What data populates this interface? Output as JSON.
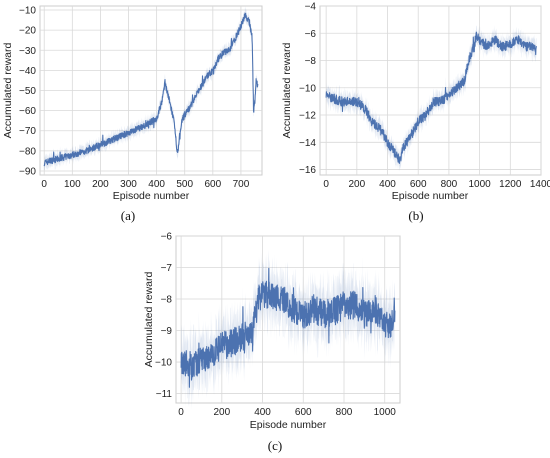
{
  "chart_data": [
    {
      "id": "a",
      "type": "line",
      "caption": "(a)",
      "xlabel": "Episode number",
      "ylabel": "Accumulated reward",
      "xlim": [
        -15,
        775
      ],
      "ylim": [
        -92,
        -8
      ],
      "xticks": [
        0,
        100,
        200,
        300,
        400,
        500,
        600,
        700
      ],
      "yticks": [
        -90,
        -80,
        -70,
        -60,
        -50,
        -40,
        -30,
        -20,
        -10
      ],
      "ytick_labels": [
        "−90",
        "−80",
        "−70",
        "−60",
        "−50",
        "−40",
        "−30",
        "−20",
        "−10"
      ],
      "color": "#4c72b0",
      "noise": 1.6,
      "series": [
        {
          "x": [
            0,
            20,
            50,
            100,
            150,
            200,
            250,
            300,
            350,
            400,
            420,
            430,
            445,
            460,
            475,
            480,
            490,
            500,
            520,
            550,
            580,
            600,
            620,
            640,
            660,
            680,
            700,
            710,
            715,
            720,
            730,
            740,
            745,
            750,
            755,
            760
          ],
          "y": [
            -86,
            -85,
            -84,
            -82,
            -80,
            -77,
            -74,
            -71,
            -68,
            -64,
            -55,
            -46,
            -55,
            -64,
            -82,
            -76,
            -65,
            -62,
            -58,
            -50,
            -43,
            -40,
            -34,
            -31,
            -30,
            -24,
            -18,
            -14,
            -12,
            -14,
            -16,
            -24,
            -60,
            -55,
            -45,
            -48
          ]
        }
      ]
    },
    {
      "id": "b",
      "type": "line",
      "caption": "(b)",
      "xlabel": "Episode number",
      "ylabel": "Accumulated reward",
      "xlim": [
        -40,
        1400
      ],
      "ylim": [
        -16.4,
        -4.0
      ],
      "xticks": [
        0,
        200,
        400,
        600,
        800,
        1000,
        1200,
        1400
      ],
      "yticks": [
        -16,
        -14,
        -12,
        -10,
        -8,
        -6,
        -4
      ],
      "ytick_labels": [
        "−16",
        "−14",
        "−12",
        "−10",
        "−8",
        "−6",
        "−4"
      ],
      "color": "#4c72b0",
      "noise": 0.35,
      "series": [
        {
          "x": [
            0,
            50,
            100,
            150,
            200,
            250,
            300,
            350,
            400,
            430,
            460,
            480,
            500,
            550,
            600,
            650,
            700,
            750,
            800,
            850,
            900,
            930,
            960,
            980,
            1000,
            1050,
            1100,
            1150,
            1200,
            1250,
            1300,
            1350,
            1370
          ],
          "y": [
            -10.5,
            -10.8,
            -11.0,
            -11.0,
            -11.0,
            -11.5,
            -12.5,
            -13.0,
            -14.0,
            -14.5,
            -15.0,
            -15.3,
            -14.5,
            -13.5,
            -12.5,
            -12.0,
            -11.0,
            -11.0,
            -10.5,
            -10.0,
            -9.5,
            -8.0,
            -7.0,
            -6.2,
            -6.5,
            -7.0,
            -6.5,
            -7.0,
            -6.8,
            -6.5,
            -7.0,
            -7.0,
            -7.0
          ]
        }
      ]
    },
    {
      "id": "c",
      "type": "line",
      "caption": "(c)",
      "xlabel": "Episode number",
      "ylabel": "Accumulated reward",
      "xlim": [
        -25,
        1075
      ],
      "ylim": [
        -11.3,
        -6.0
      ],
      "xticks": [
        0,
        200,
        400,
        600,
        800,
        1000
      ],
      "yticks": [
        -11,
        -10,
        -9,
        -8,
        -7,
        -6
      ],
      "ytick_labels": [
        "−11",
        "−10",
        "−9",
        "−8",
        "−7",
        "−6"
      ],
      "color": "#4c72b0",
      "noise": 0.45,
      "series": [
        {
          "x": [
            0,
            50,
            100,
            150,
            200,
            250,
            300,
            350,
            380,
            400,
            450,
            500,
            550,
            600,
            650,
            700,
            750,
            800,
            850,
            900,
            950,
            1000,
            1030,
            1050
          ],
          "y": [
            -10.0,
            -10.1,
            -10.0,
            -9.8,
            -9.5,
            -9.4,
            -9.2,
            -9.0,
            -8.0,
            -7.8,
            -7.9,
            -8.0,
            -8.3,
            -8.5,
            -8.3,
            -8.5,
            -8.4,
            -8.2,
            -8.2,
            -8.5,
            -8.3,
            -8.8,
            -8.8,
            -8.3
          ]
        }
      ]
    }
  ]
}
